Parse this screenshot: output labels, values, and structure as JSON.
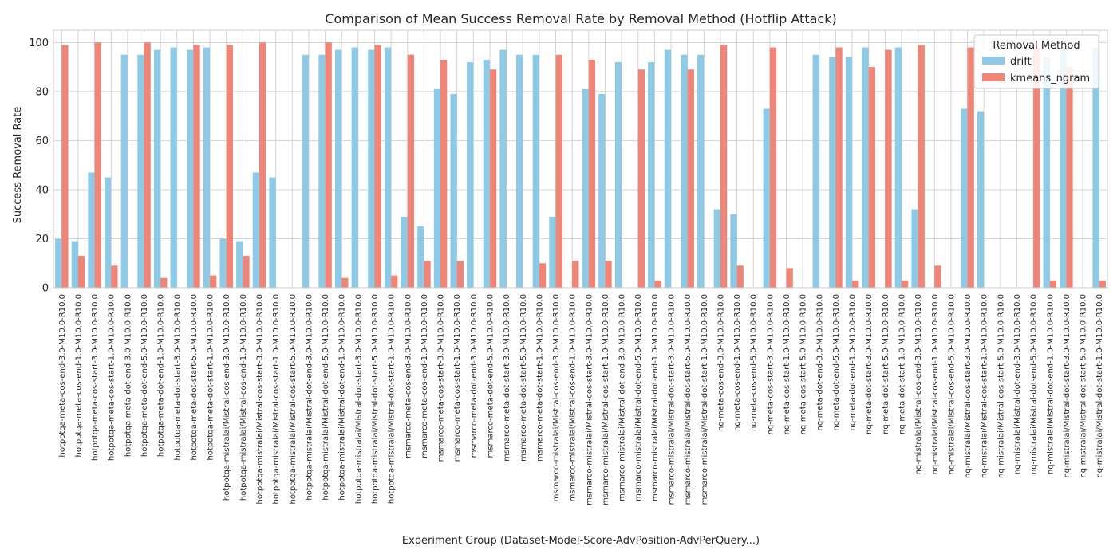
{
  "chart_data": {
    "type": "bar",
    "title": "Comparison of Mean Success Removal Rate by Removal Method (Hotflip Attack)",
    "xlabel": "Experiment Group (Dataset-Model-Score-AdvPosition-AdvPerQuery...)",
    "ylabel": "Success Removal Rate",
    "ylim": [
      0,
      105
    ],
    "yticks": [
      0,
      20,
      40,
      60,
      80,
      100
    ],
    "grid": true,
    "legend": {
      "title": "Removal Method",
      "placement": "top-right"
    },
    "categories": [
      "hotpotqa-meta-cos-end-3.0-M10.0-R10.0",
      "hotpotqa-meta-cos-end-1.0-M10.0-R10.0",
      "hotpotqa-meta-cos-start-3.0-M10.0-R10.0",
      "hotpotqa-meta-cos-start-1.0-M10.0-R10.0",
      "hotpotqa-meta-dot-end-3.0-M10.0-R10.0",
      "hotpotqa-meta-dot-end-5.0-M10.0-R10.0",
      "hotpotqa-meta-dot-end-1.0-M10.0-R10.0",
      "hotpotqa-meta-dot-start-3.0-M10.0-R10.0",
      "hotpotqa-meta-dot-start-5.0-M10.0-R10.0",
      "hotpotqa-meta-dot-start-1.0-M10.0-R10.0",
      "hotpotqa-mistralai/Mistral-cos-end-3.0-M10.0-R10.0",
      "hotpotqa-mistralai/Mistral-cos-end-1.0-M10.0-R10.0",
      "hotpotqa-mistralai/Mistral-cos-start-3.0-M10.0-R10.0",
      "hotpotqa-mistralai/Mistral-cos-start-1.0-M10.0-R10.0",
      "hotpotqa-mistralai/Mistral-cos-start-5.0-M10.0-R10.0",
      "hotpotqa-mistralai/Mistral-dot-end-3.0-M10.0-R10.0",
      "hotpotqa-mistralai/Mistral-dot-end-5.0-M10.0-R10.0",
      "hotpotqa-mistralai/Mistral-dot-end-1.0-M10.0-R10.0",
      "hotpotqa-mistralai/Mistral-dot-start-3.0-M10.0-R10.0",
      "hotpotqa-mistralai/Mistral-dot-start-5.0-M10.0-R10.0",
      "hotpotqa-mistralai/Mistral-dot-start-1.0-M10.0-R10.0",
      "msmarco-meta-cos-end-3.0-M10.0-R10.0",
      "msmarco-meta-cos-end-1.0-M10.0-R10.0",
      "msmarco-meta-cos-start-3.0-M10.0-R10.0",
      "msmarco-meta-cos-start-1.0-M10.0-R10.0",
      "msmarco-meta-dot-end-3.0-M10.0-R10.0",
      "msmarco-meta-dot-end-5.0-M10.0-R10.0",
      "msmarco-meta-dot-start-3.0-M10.0-R10.0",
      "msmarco-meta-dot-start-5.0-M10.0-R10.0",
      "msmarco-meta-dot-start-1.0-M10.0-R10.0",
      "msmarco-mistralai/Mistral-cos-end-3.0-M10.0-R10.0",
      "msmarco-mistralai/Mistral-cos-end-1.0-M10.0-R10.0",
      "msmarco-mistralai/Mistral-cos-start-3.0-M10.0-R10.0",
      "msmarco-mistralai/Mistral-cos-start-1.0-M10.0-R10.0",
      "msmarco-mistralai/Mistral-dot-end-3.0-M10.0-R10.0",
      "msmarco-mistralai/Mistral-dot-end-5.0-M10.0-R10.0",
      "msmarco-mistralai/Mistral-dot-end-1.0-M10.0-R10.0",
      "msmarco-mistralai/Mistral-dot-start-3.0-M10.0-R10.0",
      "msmarco-mistralai/Mistral-dot-start-5.0-M10.0-R10.0",
      "msmarco-mistralai/Mistral-dot-start-1.0-M10.0-R10.0",
      "nq-meta-cos-end-3.0-M10.0-R10.0",
      "nq-meta-cos-end-1.0-M10.0-R10.0",
      "nq-meta-cos-end-5.0-M10.0-R10.0",
      "nq-meta-cos-start-3.0-M10.0-R10.0",
      "nq-meta-cos-start-1.0-M10.0-R10.0",
      "nq-meta-cos-start-5.0-M10.0-R10.0",
      "nq-meta-dot-end-3.0-M10.0-R10.0",
      "nq-meta-dot-end-5.0-M10.0-R10.0",
      "nq-meta-dot-end-1.0-M10.0-R10.0",
      "nq-meta-dot-start-3.0-M10.0-R10.0",
      "nq-meta-dot-start-5.0-M10.0-R10.0",
      "nq-meta-dot-start-1.0-M10.0-R10.0",
      "nq-mistralai/Mistral-cos-end-3.0-M10.0-R10.0",
      "nq-mistralai/Mistral-cos-end-1.0-M10.0-R10.0",
      "nq-mistralai/Mistral-cos-end-5.0-M10.0-R10.0",
      "nq-mistralai/Mistral-cos-start-3.0-M10.0-R10.0",
      "nq-mistralai/Mistral-cos-start-1.0-M10.0-R10.0",
      "nq-mistralai/Mistral-cos-start-5.0-M10.0-R10.0",
      "nq-mistralai/Mistral-dot-end-3.0-M10.0-R10.0",
      "nq-mistralai/Mistral-dot-end-5.0-M10.0-R10.0",
      "nq-mistralai/Mistral-dot-end-1.0-M10.0-R10.0",
      "nq-mistralai/Mistral-dot-start-3.0-M10.0-R10.0",
      "nq-mistralai/Mistral-dot-start-5.0-M10.0-R10.0",
      "nq-mistralai/Mistral-dot-start-1.0-M10.0-R10.0"
    ],
    "series": [
      {
        "name": "drift",
        "color": "#8ecae6",
        "values": [
          20,
          19,
          47,
          45,
          95,
          95,
          97,
          98,
          97,
          98,
          20,
          19,
          47,
          45,
          0,
          95,
          95,
          97,
          98,
          97,
          98,
          29,
          25,
          81,
          79,
          92,
          93,
          97,
          95,
          95,
          29,
          0,
          81,
          79,
          92,
          0,
          92,
          97,
          95,
          95,
          32,
          30,
          0,
          73,
          0,
          0,
          95,
          94,
          94,
          98,
          0,
          98,
          32,
          0,
          0,
          73,
          72,
          0,
          0,
          0,
          94,
          98,
          0,
          98
        ]
      },
      {
        "name": "kmeans_ngram",
        "color": "#ee8577",
        "values": [
          99,
          13,
          100,
          9,
          0,
          100,
          4,
          0,
          99,
          5,
          99,
          13,
          100,
          0,
          0,
          0,
          100,
          4,
          0,
          99,
          5,
          95,
          11,
          93,
          11,
          0,
          89,
          0,
          0,
          10,
          95,
          11,
          93,
          11,
          0,
          89,
          3,
          0,
          89,
          0,
          99,
          9,
          0,
          98,
          8,
          0,
          0,
          98,
          3,
          90,
          97,
          3,
          99,
          9,
          0,
          98,
          0,
          0,
          0,
          98,
          3,
          90,
          0,
          3
        ]
      }
    ]
  }
}
